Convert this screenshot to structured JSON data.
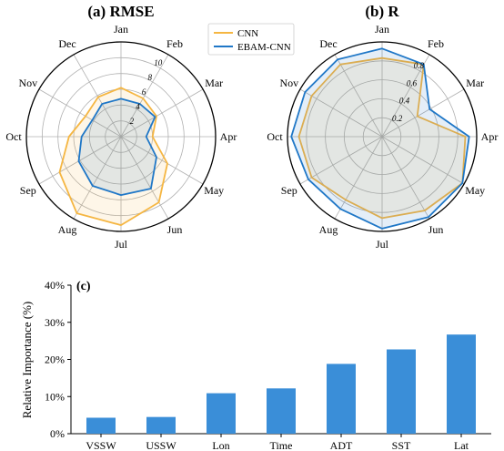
{
  "chart_data": [
    {
      "type": "radar",
      "title": "(a) RMSE",
      "categories": [
        "Jan",
        "Feb",
        "Mar",
        "Apr",
        "May",
        "Jun",
        "Jul",
        "Aug",
        "Sep",
        "Oct",
        "Nov",
        "Dec"
      ],
      "rlim": [
        0,
        12
      ],
      "rticks": [
        "2",
        "4",
        "6",
        "8",
        "10"
      ],
      "rtick_values": [
        2,
        4,
        6,
        8,
        10
      ],
      "grid": true,
      "legend_position": "top-right",
      "series": [
        {
          "name": "CNN",
          "color": "#f5b642",
          "values": [
            6.2,
            5.6,
            5.2,
            4.0,
            6.8,
            9.6,
            11.2,
            11.2,
            9.0,
            6.6,
            5.2,
            5.8
          ]
        },
        {
          "name": "EBAM-CNN",
          "color": "#1f77c7",
          "values": [
            4.8,
            4.8,
            5.0,
            3.2,
            5.2,
            7.6,
            7.4,
            7.2,
            6.2,
            5.0,
            4.2,
            4.8
          ]
        }
      ]
    },
    {
      "type": "radar",
      "title": "(b) R",
      "categories": [
        "Jan",
        "Feb",
        "Mar",
        "Apr",
        "May",
        "Jun",
        "Jul",
        "Aug",
        "Sep",
        "Oct",
        "Nov",
        "Dec"
      ],
      "rlim": [
        0,
        1.0
      ],
      "rticks": [
        "0.2",
        "0.4",
        "0.6",
        "0.8"
      ],
      "rtick_values": [
        0.2,
        0.4,
        0.6,
        0.8
      ],
      "grid": true,
      "series": [
        {
          "name": "CNN",
          "color": "#f5b642",
          "values": [
            0.83,
            0.88,
            0.43,
            0.88,
            0.98,
            0.9,
            0.86,
            0.77,
            0.86,
            0.88,
            0.86,
            0.88
          ]
        },
        {
          "name": "EBAM-CNN",
          "color": "#1f77c7",
          "values": [
            0.93,
            0.88,
            0.58,
            0.92,
            0.98,
            0.98,
            0.97,
            0.88,
            0.9,
            0.96,
            0.94,
            0.94
          ]
        }
      ]
    },
    {
      "type": "bar",
      "title": "(c)",
      "categories": [
        "VSSW",
        "USSW",
        "Lon",
        "Time",
        "ADT",
        "SST",
        "Lat"
      ],
      "values": [
        4.3,
        4.5,
        10.9,
        12.2,
        18.8,
        22.7,
        26.7
      ],
      "ylabel": "Relative Importance (%)",
      "ylim": [
        0,
        40
      ],
      "yticks": [
        "0%",
        "10%",
        "20%",
        "30%",
        "40%"
      ],
      "ytick_values": [
        0,
        10,
        20,
        30,
        40
      ],
      "bar_color": "#3a8ed8"
    }
  ]
}
